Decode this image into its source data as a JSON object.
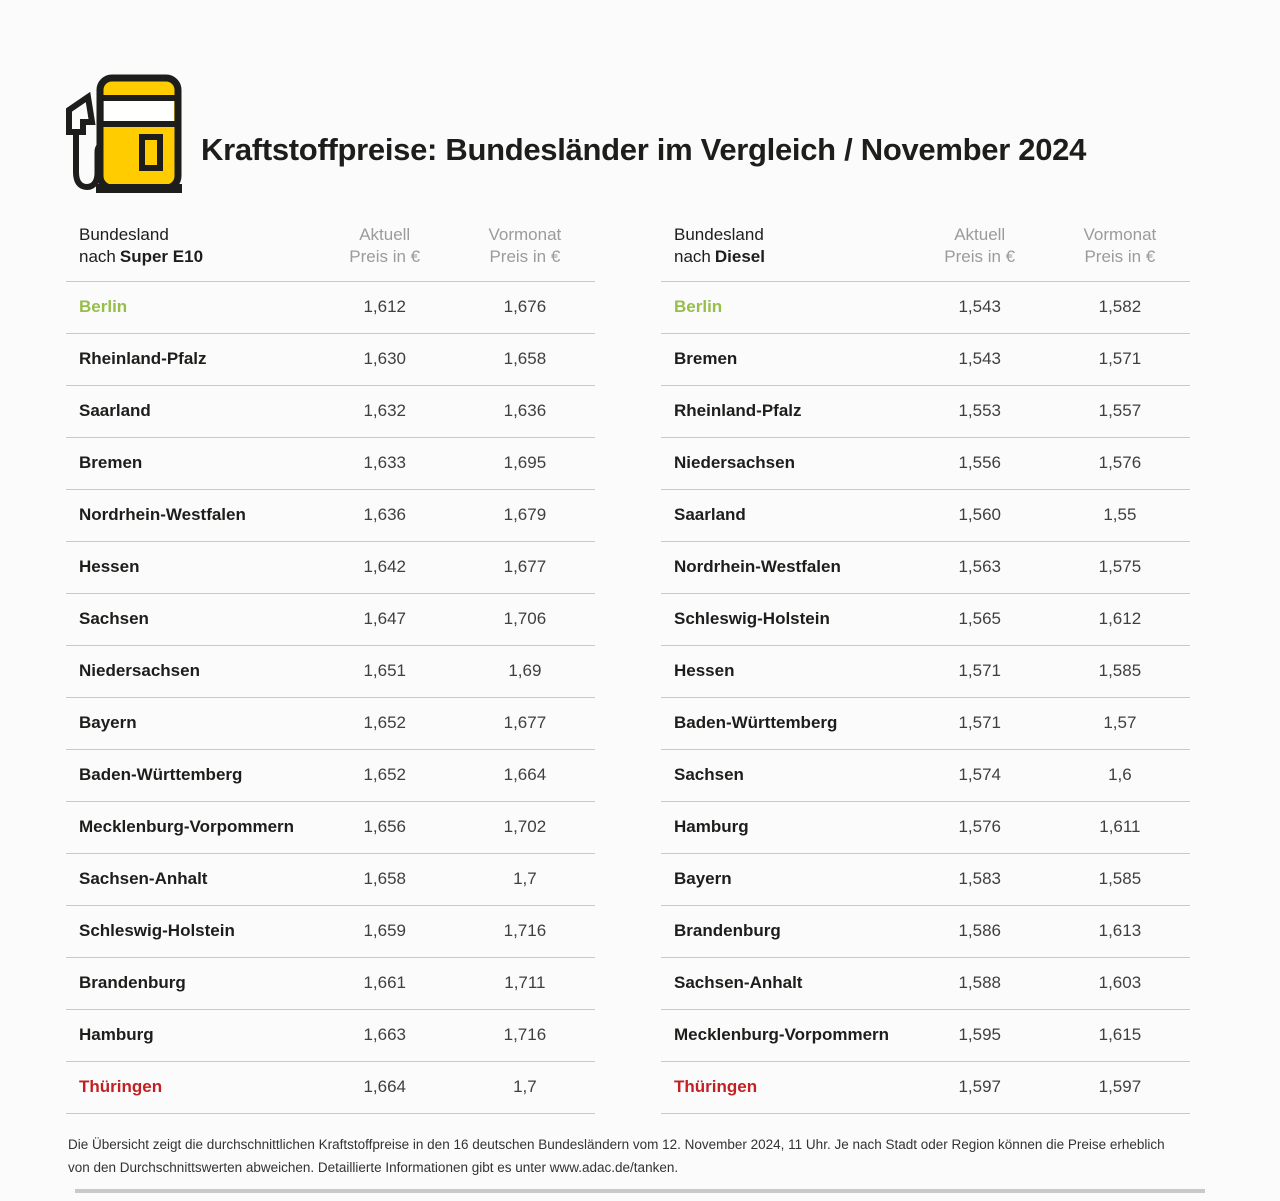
{
  "header": {
    "title": "Kraftstoffpreise: Bundesländer im Vergleich / November 2024",
    "icon": "fuel-pump-icon"
  },
  "colors": {
    "accent_yellow": "#ffcc00",
    "highlight_green": "#97be4b",
    "highlight_red": "#c22025",
    "muted_text": "#9b9b9b",
    "divider": "#c9c9c9",
    "text": "#1d1d1b"
  },
  "chart_data": [
    {
      "type": "table",
      "col_label_line1": "Bundesland",
      "col_label_prefix": "nach",
      "fuel": "Super E10",
      "col_aktuell_line1": "Aktuell",
      "col_aktuell_line2": "Preis in €",
      "col_vormonat_line1": "Vormonat",
      "col_vormonat_line2": "Preis in €",
      "rows": [
        {
          "bundesland": "Berlin",
          "aktuell": "1,612",
          "vormonat": "1,676",
          "highlight": "cheapest"
        },
        {
          "bundesland": "Rheinland-Pfalz",
          "aktuell": "1,630",
          "vormonat": "1,658",
          "highlight": null
        },
        {
          "bundesland": "Saarland",
          "aktuell": "1,632",
          "vormonat": "1,636",
          "highlight": null
        },
        {
          "bundesland": "Bremen",
          "aktuell": "1,633",
          "vormonat": "1,695",
          "highlight": null
        },
        {
          "bundesland": "Nordrhein-Westfalen",
          "aktuell": "1,636",
          "vormonat": "1,679",
          "highlight": null
        },
        {
          "bundesland": "Hessen",
          "aktuell": "1,642",
          "vormonat": "1,677",
          "highlight": null
        },
        {
          "bundesland": "Sachsen",
          "aktuell": "1,647",
          "vormonat": "1,706",
          "highlight": null
        },
        {
          "bundesland": "Niedersachsen",
          "aktuell": "1,651",
          "vormonat": "1,69",
          "highlight": null
        },
        {
          "bundesland": "Bayern",
          "aktuell": "1,652",
          "vormonat": "1,677",
          "highlight": null
        },
        {
          "bundesland": "Baden-Württemberg",
          "aktuell": "1,652",
          "vormonat": "1,664",
          "highlight": null
        },
        {
          "bundesland": "Mecklenburg-Vorpommern",
          "aktuell": "1,656",
          "vormonat": "1,702",
          "highlight": null
        },
        {
          "bundesland": "Sachsen-Anhalt",
          "aktuell": "1,658",
          "vormonat": "1,7",
          "highlight": null
        },
        {
          "bundesland": "Schleswig-Holstein",
          "aktuell": "1,659",
          "vormonat": "1,716",
          "highlight": null
        },
        {
          "bundesland": "Brandenburg",
          "aktuell": "1,661",
          "vormonat": "1,711",
          "highlight": null
        },
        {
          "bundesland": "Hamburg",
          "aktuell": "1,663",
          "vormonat": "1,716",
          "highlight": null
        },
        {
          "bundesland": "Thüringen",
          "aktuell": "1,664",
          "vormonat": "1,7",
          "highlight": "most-expensive"
        }
      ]
    },
    {
      "type": "table",
      "col_label_line1": "Bundesland",
      "col_label_prefix": "nach",
      "fuel": "Diesel",
      "col_aktuell_line1": "Aktuell",
      "col_aktuell_line2": "Preis in €",
      "col_vormonat_line1": "Vormonat",
      "col_vormonat_line2": "Preis in €",
      "rows": [
        {
          "bundesland": "Berlin",
          "aktuell": "1,543",
          "vormonat": "1,582",
          "highlight": "cheapest"
        },
        {
          "bundesland": "Bremen",
          "aktuell": "1,543",
          "vormonat": "1,571",
          "highlight": null
        },
        {
          "bundesland": "Rheinland-Pfalz",
          "aktuell": "1,553",
          "vormonat": "1,557",
          "highlight": null
        },
        {
          "bundesland": "Niedersachsen",
          "aktuell": "1,556",
          "vormonat": "1,576",
          "highlight": null
        },
        {
          "bundesland": "Saarland",
          "aktuell": "1,560",
          "vormonat": "1,55",
          "highlight": null
        },
        {
          "bundesland": "Nordrhein-Westfalen",
          "aktuell": "1,563",
          "vormonat": "1,575",
          "highlight": null
        },
        {
          "bundesland": "Schleswig-Holstein",
          "aktuell": "1,565",
          "vormonat": "1,612",
          "highlight": null
        },
        {
          "bundesland": "Hessen",
          "aktuell": "1,571",
          "vormonat": "1,585",
          "highlight": null
        },
        {
          "bundesland": "Baden-Württemberg",
          "aktuell": "1,571",
          "vormonat": "1,57",
          "highlight": null
        },
        {
          "bundesland": "Sachsen",
          "aktuell": "1,574",
          "vormonat": "1,6",
          "highlight": null
        },
        {
          "bundesland": "Hamburg",
          "aktuell": "1,576",
          "vormonat": "1,611",
          "highlight": null
        },
        {
          "bundesland": "Bayern",
          "aktuell": "1,583",
          "vormonat": "1,585",
          "highlight": null
        },
        {
          "bundesland": "Brandenburg",
          "aktuell": "1,586",
          "vormonat": "1,613",
          "highlight": null
        },
        {
          "bundesland": "Sachsen-Anhalt",
          "aktuell": "1,588",
          "vormonat": "1,603",
          "highlight": null
        },
        {
          "bundesland": "Mecklenburg-Vorpommern",
          "aktuell": "1,595",
          "vormonat": "1,615",
          "highlight": null
        },
        {
          "bundesland": "Thüringen",
          "aktuell": "1,597",
          "vormonat": "1,597",
          "highlight": "most-expensive"
        }
      ]
    }
  ],
  "footnote": "Die Übersicht zeigt die durchschnittlichen Kraftstoffpreise in den 16 deutschen Bundesländern vom 12. November 2024, 11 Uhr. Je nach Stadt oder Region können die Preise erheblich von den Durchschnittswerten abweichen. Detaillierte Informationen gibt es unter www.adac.de/tanken."
}
